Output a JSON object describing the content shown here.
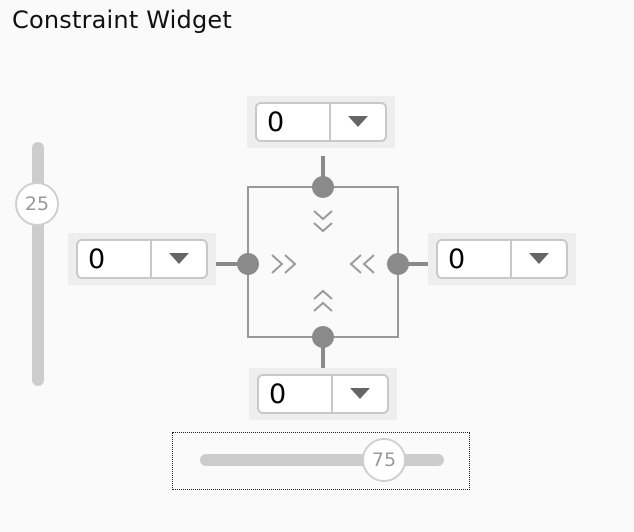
{
  "title": "Constraint Widget",
  "margins": {
    "top": "0",
    "left": "0",
    "right": "0",
    "bottom": "0"
  },
  "vertical_bias": "25",
  "horizontal_bias": "75",
  "colors": {
    "connector": "#8a8a8a",
    "frame": "#999999",
    "track": "#cccccc",
    "combo_bg": "#eeeeee"
  }
}
